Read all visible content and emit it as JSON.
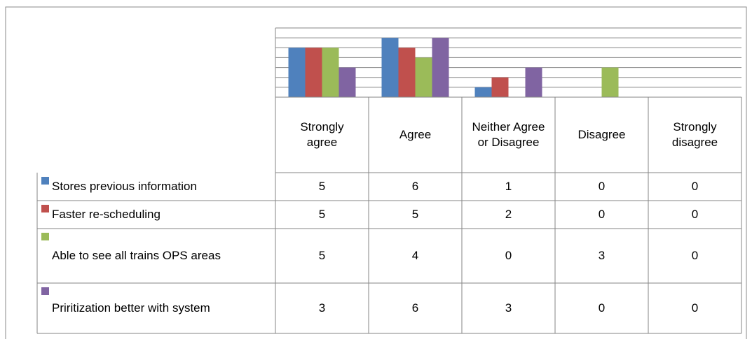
{
  "chart_data": {
    "type": "bar",
    "categories": [
      "Strongly agree",
      "Agree",
      "Neither Agree or Disagree",
      "Disagree",
      "Strongly disagree"
    ],
    "series": [
      {
        "name": "Stores previous information",
        "color": "#4f81bd",
        "values": [
          5,
          6,
          1,
          0,
          0
        ]
      },
      {
        "name": "Faster re-scheduling",
        "color": "#c0504d",
        "values": [
          5,
          5,
          2,
          0,
          0
        ]
      },
      {
        "name": "Able to see all trains OPS areas",
        "color": "#9bbb59",
        "values": [
          5,
          4,
          0,
          3,
          0
        ]
      },
      {
        "name": "Priritization better with system",
        "color": "#8064a2",
        "values": [
          3,
          6,
          3,
          0,
          0
        ]
      }
    ],
    "ylim": [
      0,
      7
    ],
    "yticks": [
      0,
      1,
      2,
      3,
      4,
      5,
      6,
      7
    ],
    "grid": true
  }
}
